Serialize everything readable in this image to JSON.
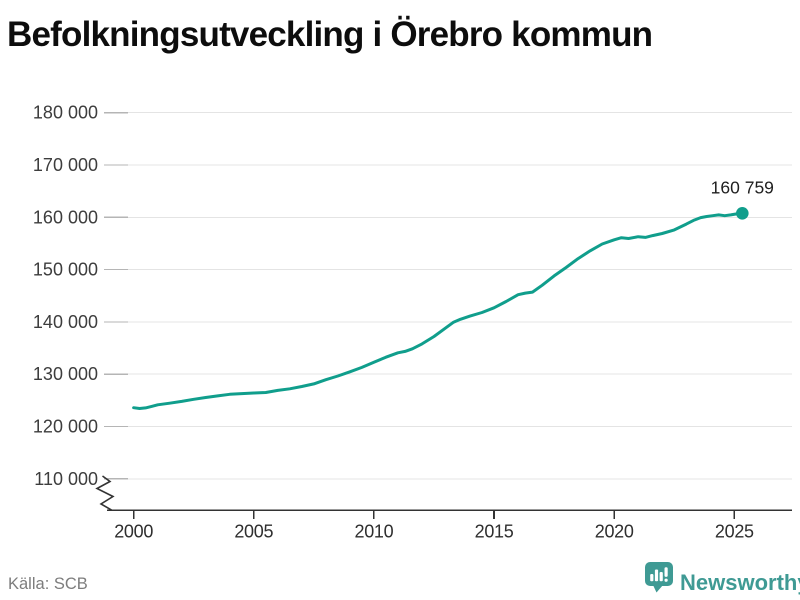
{
  "title": "Befolkningsutveckling i Örebro kommun",
  "source_label": "Källa: SCB",
  "annotation": {
    "label": "160 759"
  },
  "branding": {
    "name": "Newsworthy",
    "icon": "newsworthy-chart-bubble-icon"
  },
  "colors": {
    "line": "#109e8c",
    "grid": "#e4e4e4",
    "axis": "#333333",
    "ytick": "#b5b5b5",
    "xlabel": "#2f2f2f",
    "ylabel": "#3d3d3d",
    "title": "#0d0d0d",
    "annotation": "#1f1f1f",
    "source": "#7d7d7d",
    "brand": "#3f9a94"
  },
  "chart_data": {
    "type": "line",
    "title": "Befolkningsutveckling i Örebro kommun",
    "xlabel": "",
    "ylabel": "",
    "grid": true,
    "legend": false,
    "y_axis_break": true,
    "xlim": [
      1999.1,
      2027.4
    ],
    "ylim": [
      110000,
      180000
    ],
    "x_ticks": [
      2000,
      2005,
      2010,
      2015,
      2020,
      2025
    ],
    "x_tick_labels": [
      "2000",
      "2005",
      "2010",
      "2015",
      "2020",
      "2025"
    ],
    "y_ticks": [
      110000,
      120000,
      130000,
      140000,
      150000,
      160000,
      170000,
      180000
    ],
    "y_tick_labels": [
      "110 000",
      "120 000",
      "130 000",
      "140 000",
      "150 000",
      "160 000",
      "170 000",
      "180 000"
    ],
    "last_value": 160759,
    "series": [
      {
        "points": [
          [
            2000.0,
            123600
          ],
          [
            2000.25,
            123450
          ],
          [
            2000.5,
            123550
          ],
          [
            2000.75,
            123850
          ],
          [
            2001.0,
            124150
          ],
          [
            2001.5,
            124450
          ],
          [
            2002.0,
            124800
          ],
          [
            2002.5,
            125200
          ],
          [
            2003.0,
            125550
          ],
          [
            2003.5,
            125850
          ],
          [
            2004.0,
            126150
          ],
          [
            2004.5,
            126300
          ],
          [
            2005.0,
            126400
          ],
          [
            2005.5,
            126500
          ],
          [
            2006.0,
            126900
          ],
          [
            2006.5,
            127200
          ],
          [
            2007.0,
            127650
          ],
          [
            2007.5,
            128150
          ],
          [
            2008.0,
            128950
          ],
          [
            2008.5,
            129650
          ],
          [
            2009.0,
            130450
          ],
          [
            2009.5,
            131300
          ],
          [
            2010.0,
            132300
          ],
          [
            2010.5,
            133250
          ],
          [
            2011.0,
            134100
          ],
          [
            2011.3,
            134350
          ],
          [
            2011.6,
            134850
          ],
          [
            2012.0,
            135800
          ],
          [
            2012.5,
            137200
          ],
          [
            2013.0,
            138900
          ],
          [
            2013.3,
            139900
          ],
          [
            2013.6,
            140500
          ],
          [
            2014.0,
            141100
          ],
          [
            2014.5,
            141800
          ],
          [
            2015.0,
            142700
          ],
          [
            2015.5,
            143900
          ],
          [
            2016.0,
            145200
          ],
          [
            2016.3,
            145500
          ],
          [
            2016.6,
            145700
          ],
          [
            2017.0,
            147000
          ],
          [
            2017.5,
            148800
          ],
          [
            2018.0,
            150400
          ],
          [
            2018.5,
            152100
          ],
          [
            2019.0,
            153600
          ],
          [
            2019.5,
            154900
          ],
          [
            2020.0,
            155700
          ],
          [
            2020.3,
            156100
          ],
          [
            2020.6,
            155950
          ],
          [
            2021.0,
            156300
          ],
          [
            2021.3,
            156150
          ],
          [
            2021.6,
            156500
          ],
          [
            2022.0,
            156900
          ],
          [
            2022.5,
            157600
          ],
          [
            2023.0,
            158700
          ],
          [
            2023.3,
            159400
          ],
          [
            2023.6,
            159950
          ],
          [
            2023.85,
            160150
          ],
          [
            2024.1,
            160300
          ],
          [
            2024.35,
            160450
          ],
          [
            2024.6,
            160300
          ],
          [
            2024.85,
            160450
          ],
          [
            2025.1,
            160650
          ],
          [
            2025.33,
            160759
          ]
        ]
      }
    ]
  }
}
